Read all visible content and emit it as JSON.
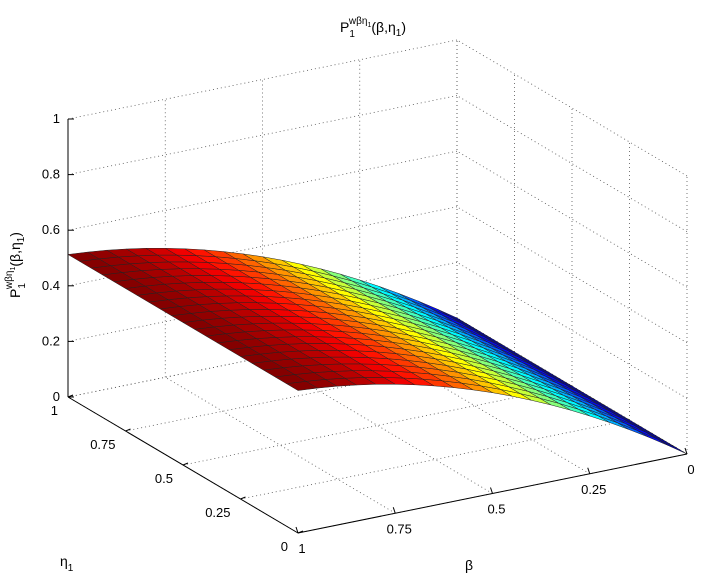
{
  "chart_data": {
    "type": "surface",
    "title": {
      "base": "P",
      "sub": "1",
      "sup": "wβη",
      "sup_sub": "1",
      "args": "(β,η",
      "args_sub": "1",
      "close": ")"
    },
    "zlabel": {
      "base": "P",
      "sub": "1",
      "sup": "wβη",
      "sup_sub": "1",
      "args": "(β,η",
      "args_sub": "1",
      "close": ")"
    },
    "xlabel": "β",
    "ylabel": {
      "base": "η",
      "sub": "1"
    },
    "x_ticks": [
      "0",
      "0.25",
      "0.5",
      "0.75",
      "1"
    ],
    "y_ticks": [
      "0",
      "0.25",
      "0.5",
      "0.75",
      "1"
    ],
    "z_ticks": [
      "0",
      "0.2",
      "0.4",
      "0.6",
      "0.8",
      "1"
    ],
    "xlim": [
      0,
      1
    ],
    "ylim": [
      0,
      1
    ],
    "zlim": [
      0,
      1
    ],
    "grid": true,
    "colormap": "jet",
    "grid_points": 21,
    "surface": {
      "beta": [
        0,
        0.05,
        0.1,
        0.15,
        0.2,
        0.25,
        0.3,
        0.35,
        0.4,
        0.45,
        0.5,
        0.55,
        0.6,
        0.65,
        0.7,
        0.75,
        0.8,
        0.85,
        0.9,
        0.95,
        1
      ],
      "value": [
        0.0,
        0.0458,
        0.0895,
        0.131,
        0.1705,
        0.2078,
        0.243,
        0.276,
        0.307,
        0.3358,
        0.3625,
        0.387,
        0.4095,
        0.4298,
        0.448,
        0.464,
        0.478,
        0.4898,
        0.4995,
        0.507,
        0.5125
      ],
      "note_eta": "value is constant along η1"
    }
  }
}
